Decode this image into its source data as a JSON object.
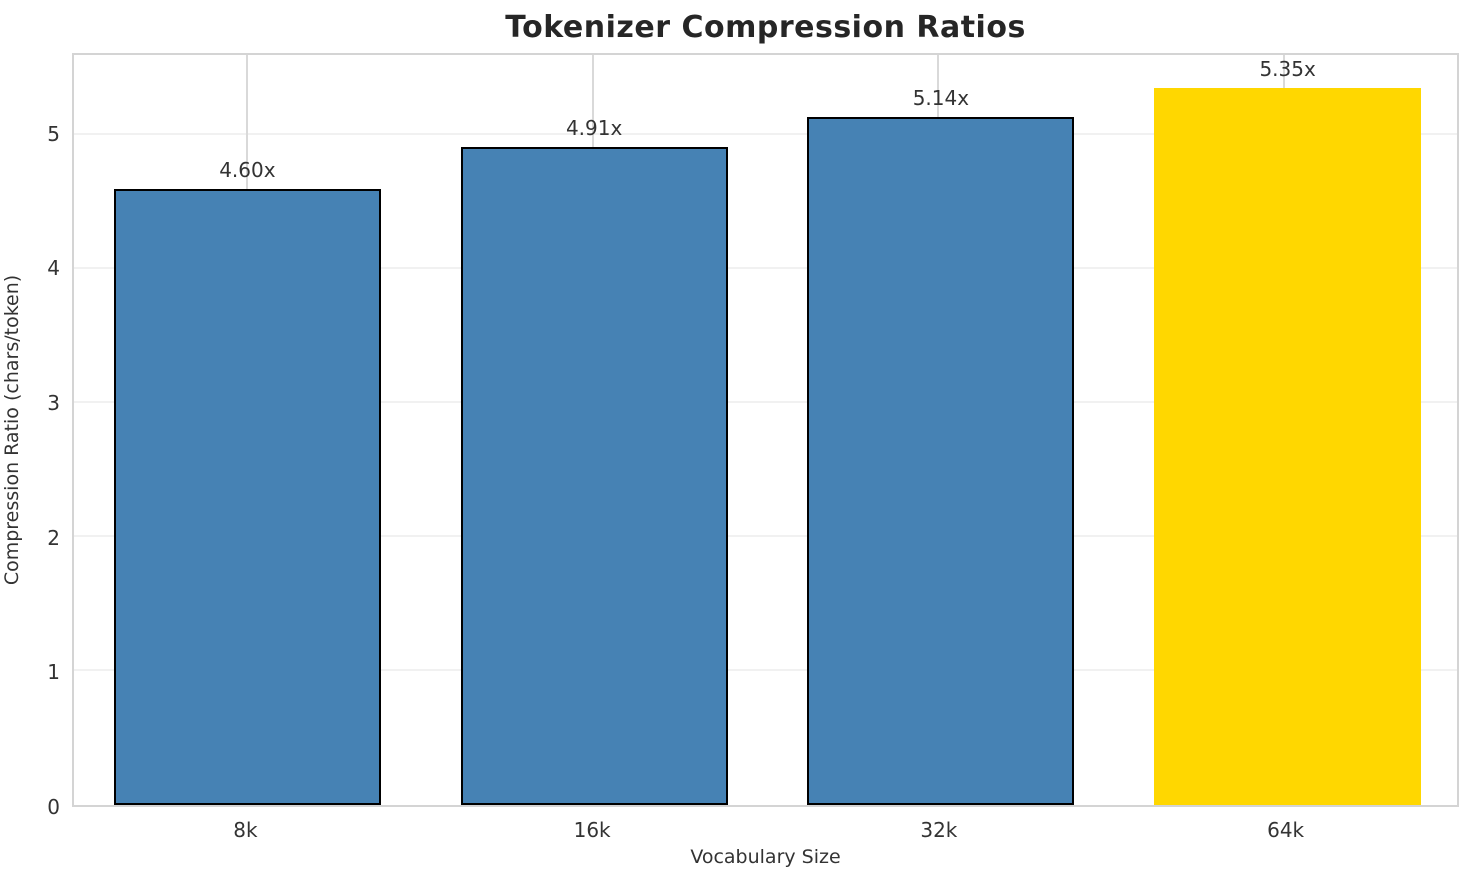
{
  "figure": {
    "title": "Tokenizer Compression Ratios",
    "xlabel": "Vocabulary Size",
    "ylabel": "Compression Ratio (chars/token)"
  },
  "chart_data": {
    "type": "bar",
    "title": "Tokenizer Compression Ratios",
    "xlabel": "Vocabulary Size",
    "ylabel": "Compression Ratio (chars/token)",
    "categories": [
      "8k",
      "16k",
      "32k",
      "64k"
    ],
    "values": [
      4.6,
      4.91,
      5.14,
      5.35
    ],
    "bar_labels": [
      "4.60x",
      "4.91x",
      "5.14x",
      "5.35x"
    ],
    "ylim": [
      0,
      5.6
    ],
    "yticks": [
      0,
      1,
      2,
      3,
      4,
      5
    ],
    "grid": true,
    "legend": "none",
    "bar_colors": [
      "#4682B4",
      "#4682B4",
      "#4682B4",
      "#FFD700"
    ],
    "bar_edge_colors": [
      "#000000",
      "#000000",
      "#000000",
      "none"
    ],
    "highlight_index": 3,
    "bar_width_fraction": 0.77
  },
  "colors": {
    "background": "#FFFFFF",
    "grid_horizontal": "#F1F1F1",
    "grid_vertical": "#D9D9D9",
    "spine": "#D4D4D4",
    "title_text": "#262626",
    "tick_text": "#333333"
  }
}
